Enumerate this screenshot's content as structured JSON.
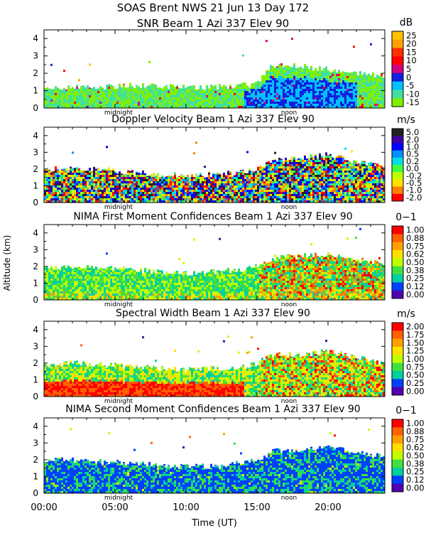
{
  "header": {
    "line1": "SOAS Brent NWS  21 Jun 13 Day 172"
  },
  "axes": {
    "ylabel": "Altitude (km)",
    "xlabel": "Time (UT)",
    "x_ticks": [
      "00:00",
      "05:00",
      "10:00",
      "15:00",
      "20:00"
    ],
    "x_tick_hours": [
      0,
      5,
      10,
      15,
      20
    ],
    "y_ticks": [
      "0",
      "1",
      "2",
      "3",
      "4"
    ],
    "markers": [
      {
        "label": "midnight",
        "hour": 5.25
      },
      {
        "label": "noon",
        "hour": 17.25
      }
    ]
  },
  "chart_data": [
    {
      "type": "heatmap",
      "title": "SNR Beam 1 Azi 337 Elev 90",
      "unit": "dB",
      "xlim": [
        0,
        24
      ],
      "ylim": [
        0,
        4.5
      ],
      "scale_labels": [
        "25",
        "20",
        "15",
        "10",
        "5",
        "0",
        "-5",
        "-10",
        "-15"
      ],
      "colors": [
        "#ffc000",
        "#ffa000",
        "#ff3000",
        "#ff0000",
        "#d00080",
        "#1020e0",
        "#00c0ff",
        "#40e0a0",
        "#80f000"
      ],
      "profile": {
        "hours": [
          0,
          2,
          4,
          6,
          8,
          10,
          12,
          14,
          15,
          16,
          18,
          20,
          22,
          24
        ],
        "top_km": [
          1.1,
          1.2,
          1.2,
          1.3,
          1.3,
          1.2,
          1.2,
          1.3,
          1.4,
          2.5,
          2.4,
          2.2,
          2.0,
          1.9
        ]
      }
    },
    {
      "type": "heatmap",
      "title": "Doppler Velocity Beam 1 Azi 337 Elev 90",
      "unit": "m/s",
      "xlim": [
        0,
        24
      ],
      "ylim": [
        0,
        4.5
      ],
      "scale_labels": [
        "5.0",
        "2.0",
        "1.0",
        "0.5",
        "0.2",
        "0.0",
        "-0.2",
        "-0.5",
        "-1.0",
        "-2.0"
      ],
      "colors": [
        "#202020",
        "#4000a0",
        "#0000ff",
        "#0090ff",
        "#00e0e0",
        "#40ff40",
        "#c0ff00",
        "#ffe000",
        "#ff8000",
        "#ff0000"
      ],
      "profile": {
        "hours": [
          0,
          2,
          4,
          6,
          8,
          10,
          12,
          14,
          15,
          16,
          18,
          20,
          22,
          24
        ],
        "top_km": [
          2.0,
          2.1,
          2.0,
          1.8,
          1.7,
          1.6,
          1.7,
          1.8,
          2.0,
          2.6,
          2.7,
          2.9,
          2.4,
          2.1
        ]
      }
    },
    {
      "type": "heatmap",
      "title": "NIMA First Moment Confidences Beam 1 Azi 337 Elev 90",
      "unit": "0−1",
      "xlim": [
        0,
        24
      ],
      "ylim": [
        0,
        4.5
      ],
      "scale_labels": [
        "1.00",
        "0.88",
        "0.75",
        "0.62",
        "0.50",
        "0.38",
        "0.25",
        "0.12",
        "0.00"
      ],
      "colors": [
        "#ff0000",
        "#ff6000",
        "#ffa000",
        "#ffe000",
        "#c0ff00",
        "#40e040",
        "#00d0a0",
        "#0040ff",
        "#5000b0"
      ],
      "profile": {
        "hours": [
          0,
          2,
          4,
          6,
          8,
          10,
          12,
          14,
          15,
          16,
          18,
          20,
          22,
          24
        ],
        "top_km": [
          1.9,
          2.0,
          1.9,
          1.8,
          1.7,
          1.6,
          1.7,
          1.8,
          2.0,
          2.5,
          2.6,
          2.8,
          2.4,
          2.1
        ]
      }
    },
    {
      "type": "heatmap",
      "title": "Spectral Width Beam 1 Azi 337 Elev 90",
      "unit": "m/s",
      "xlim": [
        0,
        24
      ],
      "ylim": [
        0,
        4.5
      ],
      "scale_labels": [
        "2.00",
        "1.75",
        "1.50",
        "1.25",
        "1.00",
        "0.75",
        "0.50",
        "0.25",
        "0.00"
      ],
      "colors": [
        "#ff0000",
        "#ff6000",
        "#ffa000",
        "#ffe000",
        "#c0ff00",
        "#40e040",
        "#00d0a0",
        "#0040ff",
        "#5000b0"
      ],
      "profile": {
        "hours": [
          0,
          2,
          4,
          6,
          8,
          10,
          12,
          14,
          15,
          16,
          18,
          20,
          22,
          24
        ],
        "top_km": [
          1.9,
          2.0,
          1.9,
          1.8,
          1.7,
          1.6,
          1.7,
          1.8,
          2.0,
          2.5,
          2.5,
          2.7,
          2.3,
          2.0
        ]
      }
    },
    {
      "type": "heatmap",
      "title": "NIMA Second Moment Confidences Beam 1 Azi 337 Elev 90",
      "unit": "0−1",
      "xlim": [
        0,
        24
      ],
      "ylim": [
        0,
        4.5
      ],
      "scale_labels": [
        "1.00",
        "0.88",
        "0.75",
        "0.62",
        "0.50",
        "0.38",
        "0.25",
        "0.12",
        "0.00"
      ],
      "colors": [
        "#ff0000",
        "#ff6000",
        "#ffa000",
        "#ffe000",
        "#c0ff00",
        "#40e040",
        "#00d0a0",
        "#0040ff",
        "#5000b0"
      ],
      "profile": {
        "hours": [
          0,
          2,
          4,
          6,
          8,
          10,
          12,
          14,
          15,
          16,
          18,
          20,
          22,
          24
        ],
        "top_km": [
          2.0,
          2.0,
          1.9,
          1.8,
          1.7,
          1.6,
          1.6,
          1.8,
          2.0,
          2.5,
          2.6,
          2.8,
          2.5,
          2.1
        ]
      }
    }
  ]
}
